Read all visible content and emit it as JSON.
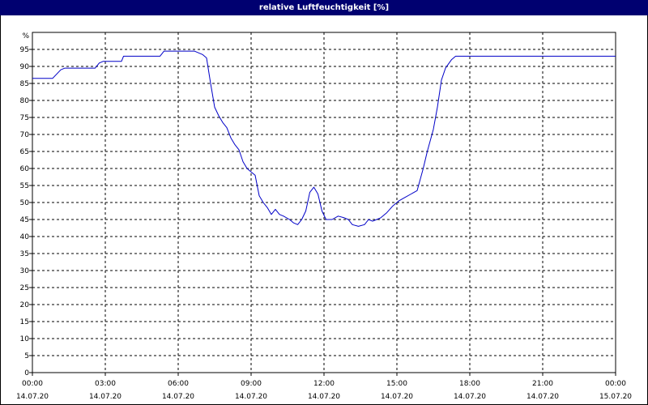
{
  "chart_data": {
    "type": "line",
    "title": "relative Luftfeuchtigkeit [%]",
    "y_unit_label": "%",
    "ylim": [
      0,
      100
    ],
    "y_ticks": [
      0,
      5,
      10,
      15,
      20,
      25,
      30,
      35,
      40,
      45,
      50,
      55,
      60,
      65,
      70,
      75,
      80,
      85,
      90,
      95
    ],
    "xlim": [
      "14.07.20 00:00",
      "15.07.20 00:00"
    ],
    "x_ticks": [
      {
        "time": "00:00",
        "date": "14.07.20"
      },
      {
        "time": "03:00",
        "date": "14.07.20"
      },
      {
        "time": "06:00",
        "date": "14.07.20"
      },
      {
        "time": "09:00",
        "date": "14.07.20"
      },
      {
        "time": "12:00",
        "date": "14.07.20"
      },
      {
        "time": "15:00",
        "date": "14.07.20"
      },
      {
        "time": "18:00",
        "date": "14.07.20"
      },
      {
        "time": "21:00",
        "date": "14.07.20"
      },
      {
        "time": "00:00",
        "date": "15.07.20"
      }
    ],
    "grid": true,
    "series": [
      {
        "color": "#0000c8",
        "points": [
          [
            "00:00",
            86.5
          ],
          [
            "00:50",
            86.5
          ],
          [
            "01:10",
            89
          ],
          [
            "01:20",
            89.5
          ],
          [
            "02:35",
            89.5
          ],
          [
            "02:45",
            91
          ],
          [
            "02:55",
            91.5
          ],
          [
            "03:40",
            91.5
          ],
          [
            "03:45",
            93
          ],
          [
            "05:15",
            93
          ],
          [
            "05:25",
            94.5
          ],
          [
            "06:40",
            94.5
          ],
          [
            "07:00",
            93.5
          ],
          [
            "07:10",
            92.5
          ],
          [
            "07:20",
            85
          ],
          [
            "07:30",
            78
          ],
          [
            "07:40",
            75.5
          ],
          [
            "07:50",
            73.5
          ],
          [
            "08:00",
            72
          ],
          [
            "08:10",
            69
          ],
          [
            "08:20",
            67
          ],
          [
            "08:30",
            65.5
          ],
          [
            "08:40",
            62
          ],
          [
            "08:50",
            60
          ],
          [
            "09:00",
            59
          ],
          [
            "09:10",
            58
          ],
          [
            "09:20",
            52
          ],
          [
            "09:30",
            50
          ],
          [
            "09:40",
            48.5
          ],
          [
            "09:50",
            46.5
          ],
          [
            "10:00",
            48
          ],
          [
            "10:10",
            46.5
          ],
          [
            "10:20",
            46
          ],
          [
            "10:35",
            45
          ],
          [
            "10:45",
            44
          ],
          [
            "10:55",
            43.5
          ],
          [
            "11:05",
            45
          ],
          [
            "11:15",
            47.5
          ],
          [
            "11:25",
            53
          ],
          [
            "11:35",
            54.5
          ],
          [
            "11:45",
            52.5
          ],
          [
            "11:55",
            47.5
          ],
          [
            "12:05",
            45
          ],
          [
            "12:20",
            45
          ],
          [
            "12:35",
            46
          ],
          [
            "12:50",
            45.5
          ],
          [
            "13:00",
            45
          ],
          [
            "13:10",
            43.5
          ],
          [
            "13:25",
            43
          ],
          [
            "13:40",
            43.5
          ],
          [
            "13:50",
            45
          ],
          [
            "14:00",
            44.5
          ],
          [
            "14:10",
            45
          ],
          [
            "14:20",
            45.5
          ],
          [
            "14:35",
            47
          ],
          [
            "14:50",
            49
          ],
          [
            "15:05",
            50.5
          ],
          [
            "15:20",
            51.5
          ],
          [
            "15:35",
            52.5
          ],
          [
            "15:50",
            53.5
          ],
          [
            "16:05",
            60
          ],
          [
            "16:15",
            65
          ],
          [
            "16:30",
            71.5
          ],
          [
            "16:40",
            78
          ],
          [
            "16:50",
            86
          ],
          [
            "17:00",
            89.5
          ],
          [
            "17:15",
            92
          ],
          [
            "17:25",
            93
          ],
          [
            "24:00",
            93
          ]
        ]
      }
    ]
  }
}
